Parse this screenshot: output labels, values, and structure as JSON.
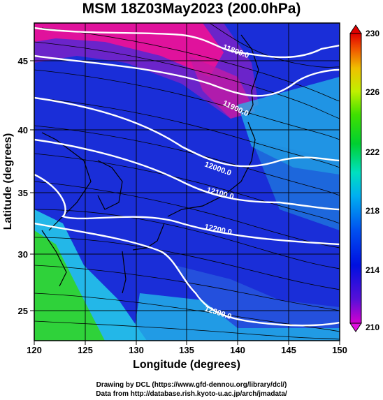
{
  "title": "MSM 18Z03May2023 (200.0hPa)",
  "x_axis": {
    "label": "Longitude (degrees)",
    "ticks": [
      "120",
      "125",
      "130",
      "135",
      "140",
      "145",
      "150"
    ],
    "range": [
      120,
      150
    ]
  },
  "y_axis": {
    "label": "Latitude  (degrees)",
    "ticks": [
      "25",
      "30",
      "35",
      "40",
      "45"
    ],
    "range": [
      22.4,
      47.6
    ]
  },
  "colorbar": {
    "ticks": [
      "210",
      "214",
      "218",
      "222",
      "226",
      "230"
    ],
    "range": [
      210,
      230
    ]
  },
  "contours": [
    {
      "label": "11800.0"
    },
    {
      "label": "11900.0"
    },
    {
      "label": "12000.0"
    },
    {
      "label": "12100.0"
    },
    {
      "label": "12200.0"
    },
    {
      "label": "12300.0"
    }
  ],
  "footer": {
    "line1": "Drawing by DCL (https://www.gfd-dennou.org/library/dcl/)",
    "line2": "Data from http://database.rish.kyoto-u.ac.jp/arch/jmadata/"
  },
  "colors": {
    "magenta": "#e0129c",
    "purple": "#7a22c8",
    "blue": "#1a2ed8",
    "cyan": "#23b7e8",
    "green": "#2fd23a"
  }
}
